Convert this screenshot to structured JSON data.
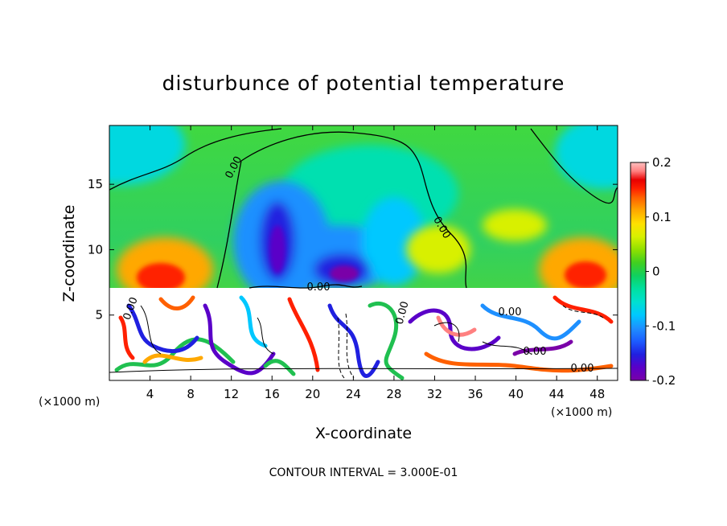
{
  "chart_data": {
    "type": "heatmap",
    "title": "disturbunce of potential temperature",
    "xlabel": "X-coordinate",
    "ylabel": "Z-coordinate",
    "x_unit": "(×1000 m)",
    "z_unit": "(×1000 m)",
    "xlim": [
      0,
      50
    ],
    "ylim": [
      0,
      19.5
    ],
    "x_ticks": [
      4,
      8,
      12,
      16,
      20,
      24,
      28,
      32,
      36,
      40,
      44,
      48
    ],
    "y_ticks": [
      5,
      10,
      15
    ],
    "colorbar": {
      "range": [
        -0.2,
        0.2
      ],
      "ticks": [
        "0.2",
        "0.1",
        "0",
        "-0.1",
        "-0.2"
      ],
      "colors": [
        "#7a00a8",
        "#5a00c8",
        "#2020e0",
        "#1c5cff",
        "#1e90ff",
        "#00c8ff",
        "#00e0d0",
        "#00e0a0",
        "#10d060",
        "#40d020",
        "#90e000",
        "#d8f000",
        "#ffe000",
        "#ffa800",
        "#ff6000",
        "#ff2000",
        "#e80000",
        "#ff8080",
        "#ffc0c0"
      ]
    },
    "contour_interval_note": "CONTOUR INTERVAL = 3.000E-01",
    "contour_labels": [
      "0.00",
      "0.00",
      "0.00",
      "0.00",
      "0.00",
      "0.00",
      "0.00",
      "0.00"
    ],
    "features": [
      {
        "kind": "warm",
        "x": 6,
        "z": 8.5,
        "value": 0.17
      },
      {
        "kind": "warm",
        "x": 46.5,
        "z": 8.5,
        "value": 0.16
      },
      {
        "kind": "warm",
        "x": 31,
        "z": 9.5,
        "value": 0.03
      },
      {
        "kind": "cold",
        "x": 16.5,
        "z": 11.5,
        "value": -0.19
      },
      {
        "kind": "cold",
        "x": 23,
        "z": 9.5,
        "value": -0.18
      },
      {
        "kind": "cold",
        "x": 28,
        "z": 11,
        "value": -0.09
      },
      {
        "kind": "cool",
        "x": 3,
        "z": 18,
        "value": -0.06
      },
      {
        "kind": "cool",
        "x": 48,
        "z": 16,
        "value": -0.05
      }
    ],
    "turbulent_layer_top_z": 7.2
  }
}
